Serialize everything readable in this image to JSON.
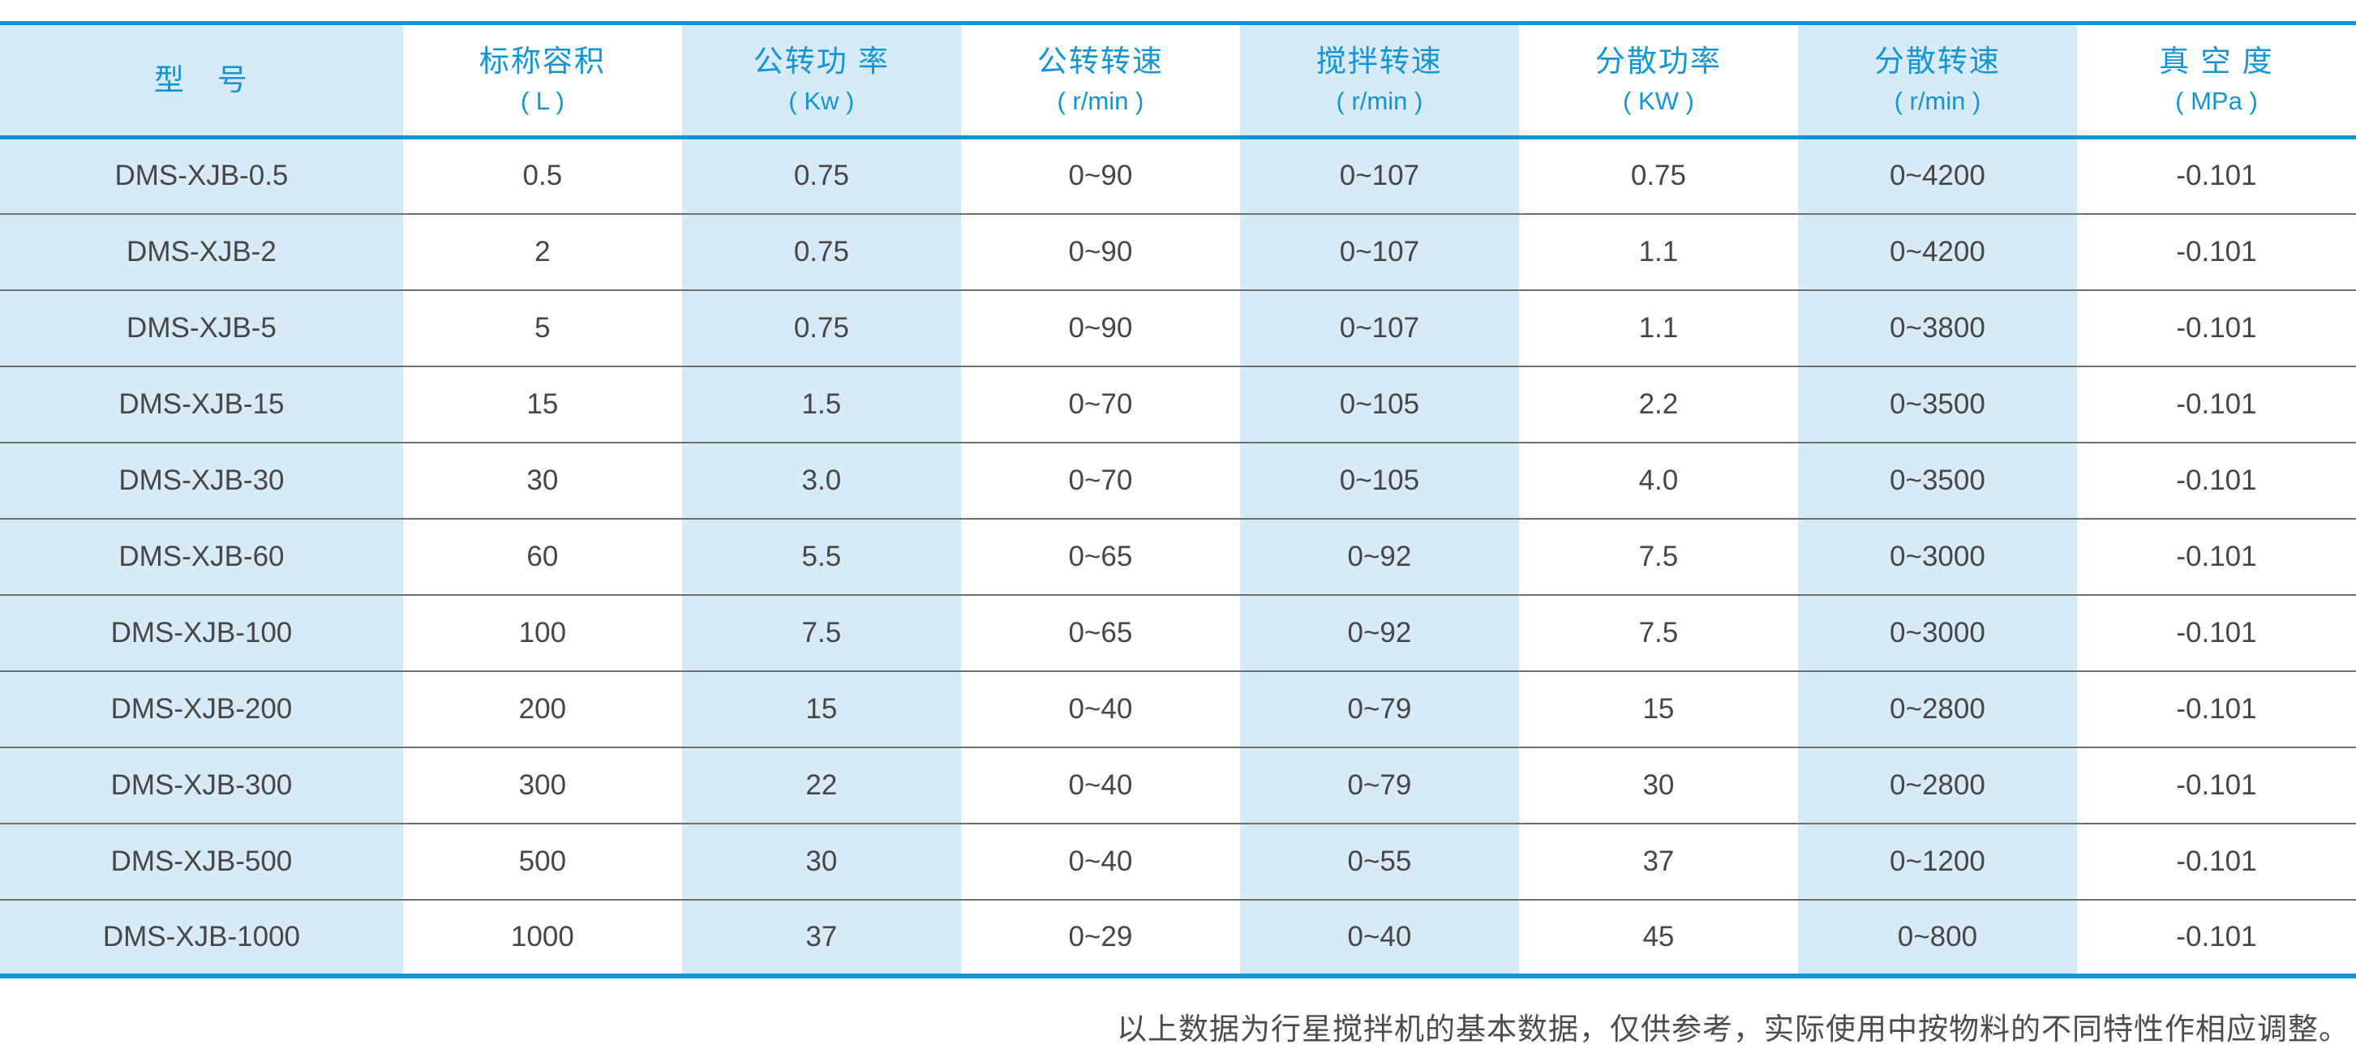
{
  "colors": {
    "accent_blue": "#1295d6",
    "column_stripe_blue": "#d6eaf8",
    "data_text": "#464646",
    "row_divider_gray": "#6e6e6e"
  },
  "table": {
    "headers": [
      {
        "title": "型　号",
        "unit": ""
      },
      {
        "title": "标称容积",
        "unit": "( L )"
      },
      {
        "title": "公转功 率",
        "unit": "( Kw )"
      },
      {
        "title": "公转转速",
        "unit": "( r/min )"
      },
      {
        "title": "搅拌转速",
        "unit": "( r/min )"
      },
      {
        "title": "分散功率",
        "unit": "( KW )"
      },
      {
        "title": "分散转速",
        "unit": "( r/min )"
      },
      {
        "title": "真 空 度",
        "unit": "( MPa )"
      }
    ],
    "rows": [
      {
        "cells": [
          "DMS-XJB-0.5",
          "0.5",
          "0.75",
          "0~90",
          "0~107",
          "0.75",
          "0~4200",
          "-0.101"
        ]
      },
      {
        "cells": [
          "DMS-XJB-2",
          "2",
          "0.75",
          "0~90",
          "0~107",
          "1.1",
          "0~4200",
          "-0.101"
        ]
      },
      {
        "cells": [
          "DMS-XJB-5",
          "5",
          "0.75",
          "0~90",
          "0~107",
          "1.1",
          "0~3800",
          "-0.101"
        ]
      },
      {
        "cells": [
          "DMS-XJB-15",
          "15",
          "1.5",
          "0~70",
          "0~105",
          "2.2",
          "0~3500",
          "-0.101"
        ]
      },
      {
        "cells": [
          "DMS-XJB-30",
          "30",
          "3.0",
          "0~70",
          "0~105",
          "4.0",
          "0~3500",
          "-0.101"
        ]
      },
      {
        "cells": [
          "DMS-XJB-60",
          "60",
          "5.5",
          "0~65",
          "0~92",
          "7.5",
          "0~3000",
          "-0.101"
        ]
      },
      {
        "cells": [
          "DMS-XJB-100",
          "100",
          "7.5",
          "0~65",
          "0~92",
          "7.5",
          "0~3000",
          "-0.101"
        ]
      },
      {
        "cells": [
          "DMS-XJB-200",
          "200",
          "15",
          "0~40",
          "0~79",
          "15",
          "0~2800",
          "-0.101"
        ]
      },
      {
        "cells": [
          "DMS-XJB-300",
          "300",
          "22",
          "0~40",
          "0~79",
          "30",
          "0~2800",
          "-0.101"
        ]
      },
      {
        "cells": [
          "DMS-XJB-500",
          "500",
          "30",
          "0~40",
          "0~55",
          "37",
          "0~1200",
          "-0.101"
        ]
      },
      {
        "cells": [
          "DMS-XJB-1000",
          "1000",
          "37",
          "0~29",
          "0~40",
          "45",
          "0~800",
          "-0.101"
        ]
      }
    ]
  },
  "footer": {
    "note": "以上数据为行星搅拌机的基本数据，仅供参考，实际使用中按物料的不同特性作相应调整。"
  }
}
